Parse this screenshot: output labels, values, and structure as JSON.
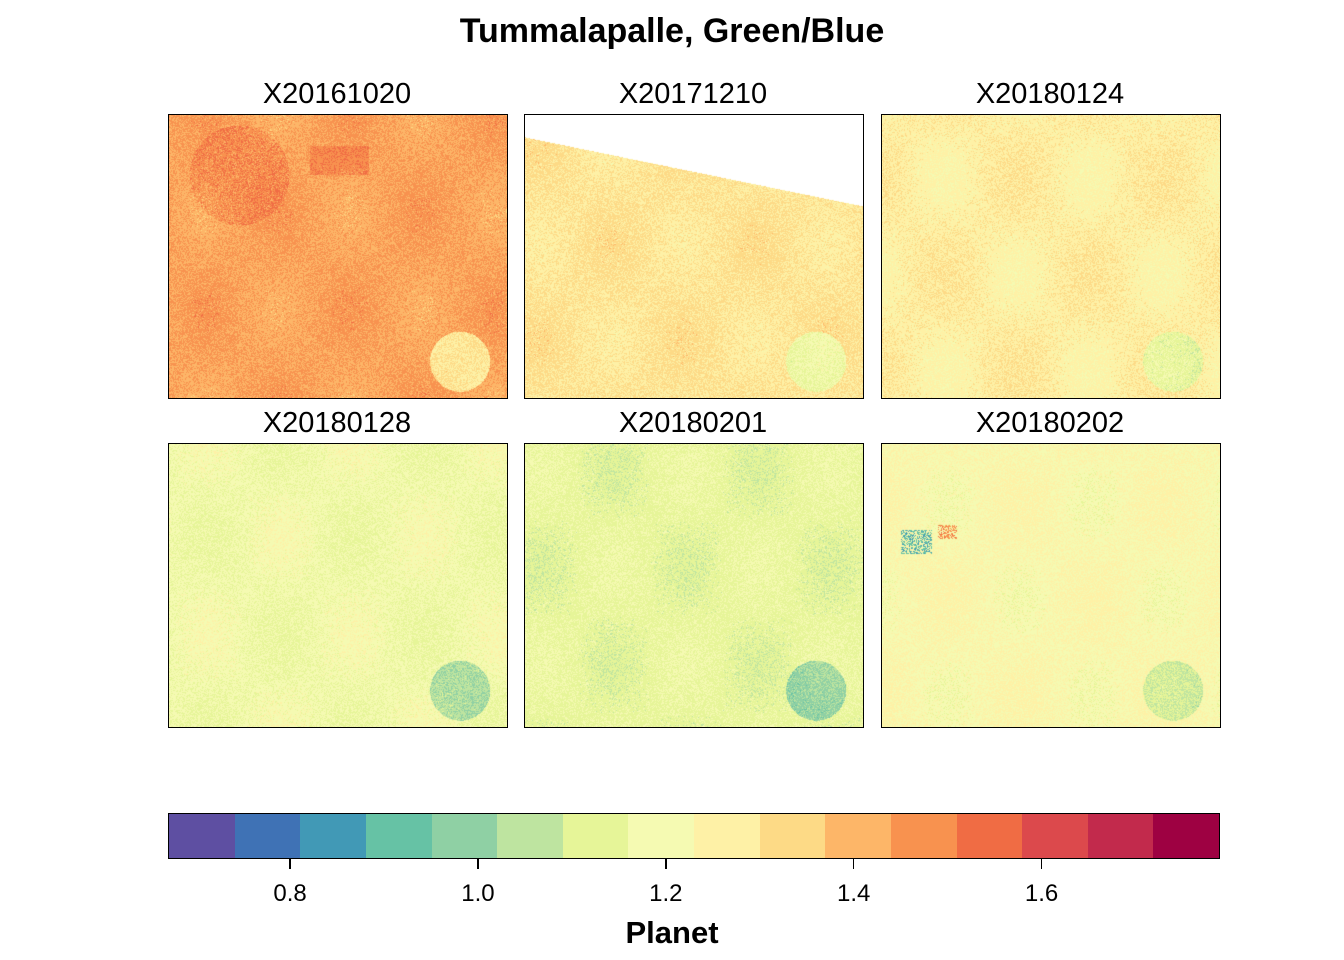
{
  "chart_data": {
    "type": "heatmap",
    "title": "Tummalapalle, Green/Blue",
    "layout": "2x3 panel grid",
    "panels": [
      {
        "name": "X20161020",
        "mean_value": 1.44,
        "note": "orange; red patches upper-left; green-blue patch lower-right"
      },
      {
        "name": "X20171210",
        "mean_value": 1.3,
        "note": "light yellow-orange; white no-data wedge along top edge"
      },
      {
        "name": "X20180124",
        "mean_value": 1.27,
        "note": "light yellow; faint green patch lower-right"
      },
      {
        "name": "X20180128",
        "mean_value": 1.18,
        "note": "pale yellow-green; blue-green patch lower-right"
      },
      {
        "name": "X20180201",
        "mean_value": 1.14,
        "note": "yellow-green; blue-green patch lower-right"
      },
      {
        "name": "X20180202",
        "mean_value": 1.22,
        "note": "pale yellow; blue spots left; red spot upper-left; blue-green patch lower-right"
      }
    ],
    "colorbar": {
      "title": "Planet",
      "range": [
        0.67,
        1.79
      ],
      "ticks": [
        0.8,
        1.0,
        1.2,
        1.4,
        1.6
      ],
      "tick_labels": [
        "0.8",
        "1.0",
        "1.2",
        "1.4",
        "1.6"
      ],
      "palette": [
        "#5E4FA2",
        "#3F72B5",
        "#4199B6",
        "#66C2A5",
        "#8FD0A4",
        "#BEE4A0",
        "#E6F598",
        "#F5FAB2",
        "#FEF1A6",
        "#FDDA86",
        "#FDB668",
        "#F8924F",
        "#F06C44",
        "#DC494C",
        "#C22A4C",
        "#9E0142"
      ],
      "orientation": "horizontal",
      "placement": "bottom"
    }
  }
}
